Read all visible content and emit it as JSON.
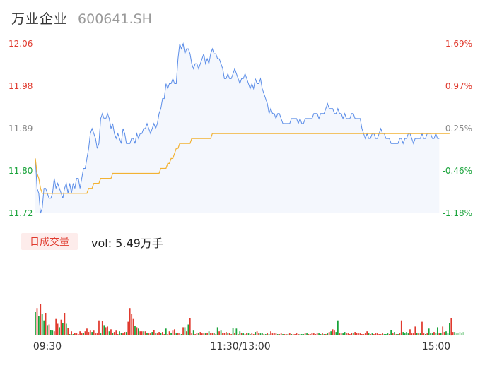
{
  "header": {
    "name": "万业企业",
    "code": "600641.SH"
  },
  "volume_panel": {
    "badge": "日成交量",
    "vol_label": "vol: 5.49万手"
  },
  "colors": {
    "up": "#e03a2e",
    "down": "#19a33a",
    "neutral": "#888888",
    "price_line": "#5b8de8",
    "avg_line": "#f2b233",
    "area_fill": "#f4f7fd"
  },
  "chart_data": [
    {
      "type": "line",
      "title": "",
      "y_labels": [
        "12.06",
        "11.98",
        "11.89",
        "11.80",
        "11.72"
      ],
      "pct_labels": [
        "1.69%",
        "0.97%",
        "0.25%",
        "-0.46%",
        "-1.18%"
      ],
      "ylim": [
        11.72,
        12.06
      ],
      "x_labels": [
        "09:30",
        "11:30/13:00",
        "15:00"
      ],
      "x_points": 240,
      "series": [
        {
          "key": "price",
          "values": [
            11.83,
            11.77,
            11.76,
            11.72,
            11.73,
            11.77,
            11.77,
            11.76,
            11.75,
            11.75,
            11.76,
            11.79,
            11.77,
            11.78,
            11.77,
            11.76,
            11.75,
            11.77,
            11.78,
            11.76,
            11.78,
            11.76,
            11.78,
            11.77,
            11.79,
            11.79,
            11.77,
            11.79,
            11.81,
            11.81,
            11.83,
            11.85,
            11.88,
            11.89,
            11.88,
            11.87,
            11.85,
            11.86,
            11.91,
            11.92,
            11.91,
            11.91,
            11.92,
            11.91,
            11.89,
            11.9,
            11.88,
            11.87,
            11.88,
            11.87,
            11.86,
            11.89,
            11.88,
            11.86,
            11.86,
            11.86,
            11.87,
            11.87,
            11.86,
            11.88,
            11.87,
            11.88,
            11.88,
            11.89,
            11.89,
            11.9,
            11.89,
            11.88,
            11.89,
            11.9,
            11.89,
            11.9,
            11.92,
            11.93,
            11.95,
            11.95,
            11.98,
            11.97,
            11.98,
            11.98,
            11.99,
            11.98,
            11.98,
            12.03,
            12.06,
            12.05,
            12.06,
            12.04,
            12.05,
            12.05,
            12.04,
            12.02,
            12.01,
            12.02,
            12.02,
            12.01,
            12.02,
            12.03,
            12.04,
            12.02,
            12.03,
            12.02,
            12.04,
            12.05,
            12.04,
            12.04,
            12.03,
            12.03,
            12.02,
            12.01,
            11.99,
            11.99,
            12.0,
            11.99,
            11.99,
            12.0,
            12.01,
            12.0,
            11.99,
            11.98,
            11.99,
            11.99,
            12.0,
            11.99,
            11.98,
            11.97,
            11.98,
            11.97,
            11.99,
            11.98,
            11.98,
            11.99,
            11.97,
            11.96,
            11.95,
            11.94,
            11.92,
            11.93,
            11.92,
            11.92,
            11.91,
            11.92,
            11.92,
            11.91,
            11.9,
            11.9,
            11.9,
            11.9,
            11.9,
            11.91,
            11.91,
            11.91,
            11.91,
            11.9,
            11.91,
            11.9,
            11.9,
            11.91,
            11.91,
            11.91,
            11.91,
            11.91,
            11.92,
            11.92,
            11.92,
            11.91,
            11.92,
            11.92,
            11.92,
            11.93,
            11.94,
            11.93,
            11.93,
            11.93,
            11.92,
            11.92,
            11.93,
            11.92,
            11.92,
            11.91,
            11.92,
            11.91,
            11.91,
            11.91,
            11.92,
            11.92,
            11.91,
            11.91,
            11.91,
            11.91,
            11.89,
            11.88,
            11.87,
            11.88,
            11.87,
            11.87,
            11.88,
            11.88,
            11.87,
            11.87,
            11.88,
            11.89,
            11.88,
            11.88,
            11.87,
            11.87,
            11.87,
            11.86,
            11.86,
            11.86,
            11.86,
            11.86,
            11.87,
            11.87,
            11.86,
            11.87,
            11.87,
            11.88,
            11.88,
            11.87,
            11.86,
            11.87,
            11.87,
            11.87,
            11.87,
            11.88,
            11.87,
            11.87,
            11.88,
            11.88,
            11.88,
            11.87,
            11.87,
            11.88,
            11.87,
            11.87
          ]
        },
        {
          "key": "average",
          "values": [
            11.83,
            11.8,
            11.79,
            11.77,
            11.76,
            11.76,
            11.76,
            11.76,
            11.76,
            11.76,
            11.76,
            11.76,
            11.76,
            11.76,
            11.76,
            11.76,
            11.76,
            11.76,
            11.76,
            11.76,
            11.76,
            11.76,
            11.76,
            11.76,
            11.76,
            11.76,
            11.76,
            11.76,
            11.76,
            11.76,
            11.76,
            11.77,
            11.77,
            11.77,
            11.78,
            11.78,
            11.78,
            11.78,
            11.79,
            11.79,
            11.79,
            11.79,
            11.79,
            11.79,
            11.79,
            11.8,
            11.8,
            11.8,
            11.8,
            11.8,
            11.8,
            11.8,
            11.8,
            11.8,
            11.8,
            11.8,
            11.8,
            11.8,
            11.8,
            11.8,
            11.8,
            11.8,
            11.8,
            11.8,
            11.8,
            11.8,
            11.8,
            11.8,
            11.8,
            11.8,
            11.8,
            11.8,
            11.8,
            11.81,
            11.81,
            11.81,
            11.81,
            11.82,
            11.82,
            11.83,
            11.83,
            11.84,
            11.85,
            11.85,
            11.86,
            11.86,
            11.86,
            11.86,
            11.86,
            11.86,
            11.86,
            11.87,
            11.87,
            11.87,
            11.87,
            11.87,
            11.87,
            11.87,
            11.87,
            11.87,
            11.87,
            11.87,
            11.87,
            11.88,
            11.88,
            11.88,
            11.88,
            11.88,
            11.88,
            11.88,
            11.88,
            11.88,
            11.88,
            11.88,
            11.88,
            11.88,
            11.88,
            11.88,
            11.88,
            11.88,
            11.88,
            11.88,
            11.88,
            11.88,
            11.88,
            11.88,
            11.88,
            11.88,
            11.88,
            11.88,
            11.88,
            11.88,
            11.88,
            11.88,
            11.88,
            11.88,
            11.88,
            11.88,
            11.88,
            11.88,
            11.88,
            11.88,
            11.88,
            11.88,
            11.88,
            11.88,
            11.88,
            11.88,
            11.88,
            11.88,
            11.88,
            11.88,
            11.88,
            11.88,
            11.88,
            11.88,
            11.88,
            11.88,
            11.88,
            11.88,
            11.88,
            11.88,
            11.88,
            11.88,
            11.88,
            11.88,
            11.88,
            11.88,
            11.88,
            11.88,
            11.88,
            11.88,
            11.88,
            11.88,
            11.88,
            11.88,
            11.88,
            11.88,
            11.88,
            11.88,
            11.88,
            11.88,
            11.88,
            11.88,
            11.88,
            11.88,
            11.88,
            11.88,
            11.88,
            11.88,
            11.88,
            11.88,
            11.88,
            11.88,
            11.88,
            11.88,
            11.88,
            11.88,
            11.88,
            11.88,
            11.88,
            11.88,
            11.88,
            11.88,
            11.88,
            11.88,
            11.88,
            11.88,
            11.88,
            11.88,
            11.88,
            11.88,
            11.88,
            11.88,
            11.88,
            11.88,
            11.88,
            11.88,
            11.88,
            11.88,
            11.88,
            11.88,
            11.88,
            11.88,
            11.88,
            11.88,
            11.88,
            11.88,
            11.88,
            11.88,
            11.88,
            11.88,
            11.88,
            11.88,
            11.88,
            11.88,
            11.88,
            11.88,
            11.88,
            11.88,
            11.88,
            11.88
          ]
        }
      ]
    },
    {
      "type": "bar",
      "title": "",
      "ymax": 100,
      "values": [
        34,
        40,
        28,
        46,
        31,
        22,
        33,
        15,
        16,
        8,
        7,
        6,
        24,
        17,
        12,
        23,
        18,
        33,
        17,
        11,
        2,
        6,
        2,
        4,
        3,
        2,
        6,
        3,
        4,
        6,
        10,
        5,
        7,
        5,
        7,
        3,
        3,
        22,
        3,
        21,
        15,
        12,
        13,
        6,
        9,
        4,
        5,
        7,
        2,
        6,
        4,
        3,
        5,
        5,
        20,
        40,
        31,
        24,
        14,
        12,
        10,
        6,
        6,
        6,
        6,
        4,
        3,
        3,
        5,
        8,
        3,
        3,
        5,
        4,
        5,
        2,
        10,
        2,
        6,
        4,
        7,
        9,
        3,
        4,
        4,
        2,
        12,
        12,
        6,
        16,
        25,
        3,
        7,
        2,
        4,
        4,
        5,
        3,
        3,
        3,
        4,
        6,
        4,
        4,
        4,
        2,
        12,
        6,
        7,
        4,
        4,
        5,
        3,
        4,
        2,
        11,
        4,
        10,
        2,
        6,
        4,
        3,
        2,
        4,
        3,
        2,
        3,
        2,
        5,
        6,
        3,
        3,
        4,
        2,
        2,
        3,
        2,
        6,
        3,
        4,
        3,
        2,
        2,
        3,
        2,
        2,
        2,
        2,
        3,
        2,
        2,
        2,
        3,
        2,
        2,
        2,
        2,
        3,
        3,
        2,
        2,
        4,
        3,
        2,
        3,
        3,
        2,
        3,
        2,
        2,
        3,
        5,
        6,
        9,
        7,
        5,
        22,
        3,
        3,
        3,
        5,
        3,
        3,
        2,
        4,
        4,
        5,
        4,
        3,
        3,
        2,
        2,
        3,
        6,
        3,
        2,
        3,
        2,
        3,
        3,
        2,
        2,
        3,
        2,
        2,
        3,
        2,
        8,
        3,
        5,
        2,
        2,
        3,
        22,
        5,
        3,
        5,
        3,
        9,
        3,
        3,
        13,
        4,
        3,
        3,
        20,
        3,
        2,
        3,
        10,
        3,
        3,
        5,
        4,
        12,
        3,
        4,
        13,
        5,
        6,
        3,
        18,
        25,
        5,
        5,
        3,
        4,
        5,
        4,
        5
      ],
      "directions": [
        "down",
        "up",
        "down",
        "up",
        "down",
        "down",
        "up",
        "down",
        "up",
        "down",
        "down",
        "up",
        "up",
        "up",
        "down",
        "up",
        "down",
        "up",
        "down",
        "up",
        "down",
        "up",
        "down",
        "up",
        "up",
        "up",
        "up",
        "up",
        "down",
        "up",
        "up",
        "up",
        "up",
        "down",
        "up",
        "up",
        "up",
        "up",
        "down",
        "up",
        "down",
        "up",
        "up",
        "down",
        "up",
        "down",
        "up",
        "up",
        "up",
        "down",
        "down",
        "up",
        "up",
        "down",
        "up",
        "up",
        "up",
        "up",
        "down",
        "up",
        "down",
        "up",
        "up",
        "down",
        "up",
        "down",
        "up",
        "up",
        "down",
        "up",
        "down",
        "up",
        "up",
        "down",
        "up",
        "up",
        "down",
        "up",
        "up",
        "down",
        "up",
        "up",
        "down",
        "up",
        "up",
        "down",
        "up",
        "down",
        "up",
        "down",
        "up",
        "up",
        "down",
        "up",
        "up",
        "down",
        "up",
        "up",
        "up",
        "down",
        "up",
        "down",
        "up",
        "up",
        "down",
        "up",
        "down",
        "up",
        "down",
        "up",
        "up",
        "up",
        "down",
        "up",
        "up",
        "down",
        "up",
        "down",
        "up",
        "down",
        "up",
        "down",
        "up",
        "up",
        "down",
        "down",
        "up",
        "up",
        "down",
        "up",
        "up",
        "down",
        "down",
        "up",
        "down",
        "up",
        "down",
        "up",
        "up",
        "up",
        "up",
        "down",
        "up",
        "up",
        "down",
        "up",
        "up",
        "down",
        "up",
        "down",
        "up",
        "up",
        "up",
        "up",
        "down",
        "down",
        "down",
        "up",
        "down",
        "up",
        "up",
        "up",
        "up",
        "up",
        "up",
        "down",
        "down",
        "up",
        "down",
        "up",
        "down",
        "up",
        "down",
        "up",
        "up",
        "down",
        "down",
        "up",
        "up",
        "down",
        "down",
        "up",
        "up",
        "up",
        "up",
        "down",
        "up",
        "up",
        "up",
        "up",
        "up",
        "up",
        "up",
        "up",
        "down",
        "up",
        "down",
        "up",
        "up",
        "up",
        "up",
        "up",
        "up",
        "down",
        "down",
        "down",
        "up",
        "down",
        "up",
        "down",
        "up",
        "down",
        "up",
        "up",
        "down",
        "down",
        "down",
        "down",
        "up",
        "up",
        "up",
        "up",
        "down",
        "up",
        "down",
        "up",
        "up",
        "down",
        "up",
        "down",
        "down",
        "down",
        "up",
        "down",
        "down",
        "up",
        "down",
        "up",
        "up",
        "down",
        "down",
        "down",
        "up",
        "up",
        "down",
        "neutral"
      ]
    }
  ]
}
